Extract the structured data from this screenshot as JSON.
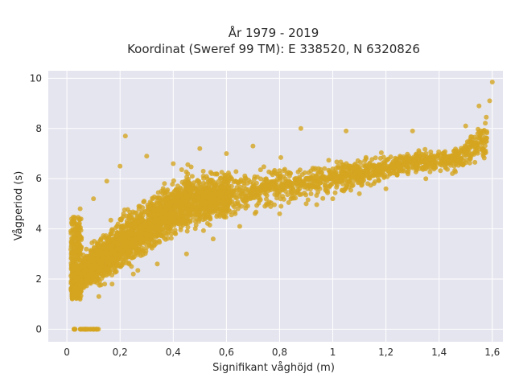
{
  "chart_data": {
    "type": "scatter",
    "title_line1": "År 1979 - 2019",
    "title_line2": "Koordinat (Sweref 99 TM): E 338520, N 6320826",
    "xlabel": "Signifikant våghöjd (m)",
    "ylabel": "Vågperiod (s)",
    "xlim": [
      -0.07,
      1.64
    ],
    "ylim": [
      -0.5,
      10.3
    ],
    "x_ticks": [
      0,
      0.2,
      0.4,
      0.6,
      0.8,
      1.0,
      1.2,
      1.4,
      1.6
    ],
    "x_tick_labels": [
      "0",
      "0,2",
      "0,4",
      "0,6",
      "0,8",
      "1",
      "1,2",
      "1,4",
      "1,6"
    ],
    "y_ticks": [
      0,
      2,
      4,
      6,
      8,
      10
    ],
    "y_tick_labels": [
      "0",
      "2",
      "4",
      "6",
      "8",
      "10"
    ],
    "grid": true,
    "background_color": "#e5e5ef",
    "marker_color": "#d4a520",
    "series": [
      {
        "name": "",
        "description_points": [
          {
            "x": 0.03,
            "y": 0.0
          },
          {
            "x": 0.05,
            "y": 0.0
          },
          {
            "x": 0.07,
            "y": 0.0
          },
          {
            "x": 0.09,
            "y": 0.0
          },
          {
            "x": 0.11,
            "y": 0.0
          },
          {
            "x": 0.02,
            "y": 1.3
          },
          {
            "x": 0.02,
            "y": 4.2
          },
          {
            "x": 0.03,
            "y": 2.5
          },
          {
            "x": 0.05,
            "y": 1.2
          },
          {
            "x": 0.05,
            "y": 4.8
          },
          {
            "x": 0.08,
            "y": 2.0
          },
          {
            "x": 0.1,
            "y": 5.2
          },
          {
            "x": 0.12,
            "y": 1.3
          },
          {
            "x": 0.15,
            "y": 5.9
          },
          {
            "x": 0.17,
            "y": 1.8
          },
          {
            "x": 0.2,
            "y": 6.5
          },
          {
            "x": 0.22,
            "y": 7.7
          },
          {
            "x": 0.25,
            "y": 2.2
          },
          {
            "x": 0.3,
            "y": 6.9
          },
          {
            "x": 0.34,
            "y": 2.6
          },
          {
            "x": 0.4,
            "y": 6.6
          },
          {
            "x": 0.45,
            "y": 3.0
          },
          {
            "x": 0.5,
            "y": 7.2
          },
          {
            "x": 0.55,
            "y": 3.6
          },
          {
            "x": 0.6,
            "y": 7.0
          },
          {
            "x": 0.65,
            "y": 4.1
          },
          {
            "x": 0.7,
            "y": 7.3
          },
          {
            "x": 0.8,
            "y": 4.6
          },
          {
            "x": 0.88,
            "y": 8.0
          },
          {
            "x": 0.9,
            "y": 5.0
          },
          {
            "x": 1.0,
            "y": 5.2
          },
          {
            "x": 1.05,
            "y": 7.9
          },
          {
            "x": 1.1,
            "y": 5.4
          },
          {
            "x": 1.2,
            "y": 5.6
          },
          {
            "x": 1.3,
            "y": 7.9
          },
          {
            "x": 1.35,
            "y": 6.0
          },
          {
            "x": 1.45,
            "y": 6.2
          },
          {
            "x": 1.5,
            "y": 8.1
          },
          {
            "x": 1.55,
            "y": 8.9
          },
          {
            "x": 1.59,
            "y": 9.1
          },
          {
            "x": 1.6,
            "y": 9.85
          }
        ]
      }
    ]
  }
}
